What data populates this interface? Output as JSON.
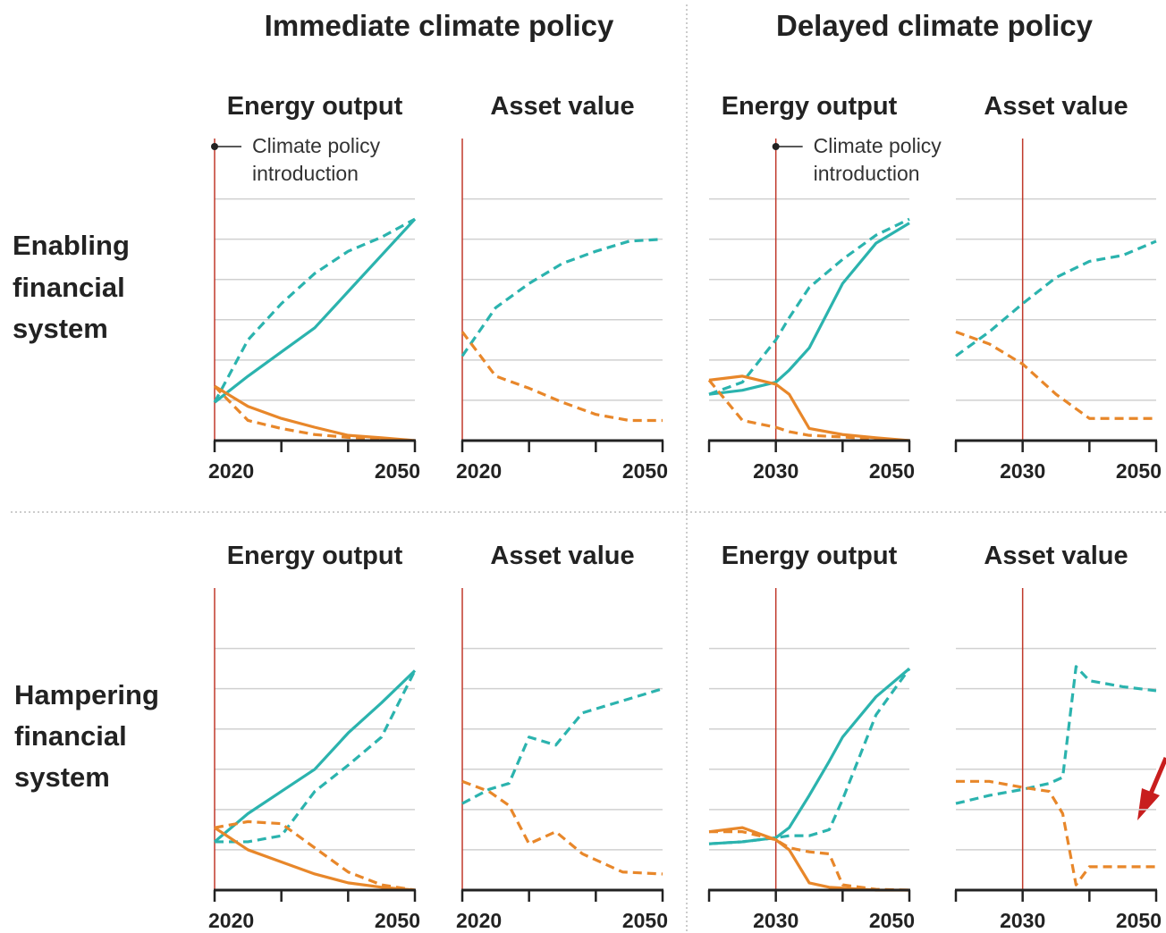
{
  "column_headers": [
    "Immediate climate policy",
    "Delayed climate policy"
  ],
  "row_labels": [
    [
      "Enabling",
      "financial",
      "system"
    ],
    [
      "Hampering",
      "financial",
      "system"
    ]
  ],
  "chart_data": [
    {
      "type": "line",
      "title": "Energy output",
      "annotation": [
        "Climate policy",
        "introduction"
      ],
      "policy_year": 2020,
      "x": [
        2020,
        2025,
        2030,
        2035,
        2040,
        2045,
        2050
      ],
      "xlim": [
        2020,
        2050
      ],
      "xticks": [
        2020,
        2050
      ],
      "xminor": [
        2030,
        2040
      ],
      "ylim": [
        0,
        7.5
      ],
      "yticks": [
        1,
        2,
        3,
        4,
        5,
        6
      ],
      "grid": true,
      "series": [
        {
          "color": "#2bb3ae",
          "dash": false,
          "values": [
            0.95,
            1.6,
            2.2,
            2.8,
            3.7,
            4.6,
            5.5
          ]
        },
        {
          "color": "#2bb3ae",
          "dash": true,
          "values": [
            0.95,
            2.5,
            3.4,
            4.15,
            4.7,
            5.05,
            5.5
          ]
        },
        {
          "color": "#e8872a",
          "dash": false,
          "values": [
            1.35,
            0.85,
            0.55,
            0.33,
            0.13,
            0.07,
            0
          ]
        },
        {
          "color": "#e8872a",
          "dash": true,
          "values": [
            1.35,
            0.5,
            0.3,
            0.15,
            0.08,
            0.04,
            0
          ]
        }
      ]
    },
    {
      "type": "line",
      "title": "Asset value",
      "policy_year": 2020,
      "x": [
        2020,
        2025,
        2030,
        2035,
        2040,
        2045,
        2050
      ],
      "xlim": [
        2020,
        2050
      ],
      "xticks": [
        2020,
        2050
      ],
      "xminor": [
        2030,
        2040
      ],
      "ylim": [
        0,
        7.5
      ],
      "yticks": [
        1,
        2,
        3,
        4,
        5,
        6
      ],
      "grid": true,
      "series": [
        {
          "color": "#2bb3ae",
          "dash": true,
          "values": [
            2.1,
            3.3,
            3.9,
            4.4,
            4.7,
            4.95,
            5.0
          ]
        },
        {
          "color": "#e8872a",
          "dash": true,
          "values": [
            2.7,
            1.6,
            1.3,
            0.95,
            0.65,
            0.5,
            0.5
          ]
        }
      ]
    },
    {
      "type": "line",
      "title": "Energy output",
      "annotation": [
        "Climate policy",
        "introduction"
      ],
      "policy_year": 2030,
      "x": [
        2020,
        2025,
        2030,
        2032,
        2035,
        2040,
        2045,
        2050
      ],
      "xlim": [
        2020,
        2050
      ],
      "xticks": [
        2030,
        2050
      ],
      "xminor": [
        2020,
        2040
      ],
      "ylim": [
        0,
        7.5
      ],
      "yticks": [
        1,
        2,
        3,
        4,
        5,
        6
      ],
      "grid": true,
      "series": [
        {
          "color": "#2bb3ae",
          "dash": false,
          "values": [
            1.15,
            1.25,
            1.45,
            1.75,
            2.3,
            3.9,
            4.9,
            5.4
          ]
        },
        {
          "color": "#2bb3ae",
          "dash": true,
          "values": [
            1.15,
            1.45,
            2.5,
            3.05,
            3.8,
            4.5,
            5.1,
            5.5
          ]
        },
        {
          "color": "#e8872a",
          "dash": false,
          "values": [
            1.5,
            1.6,
            1.4,
            1.15,
            0.3,
            0.15,
            0.07,
            0
          ]
        },
        {
          "color": "#e8872a",
          "dash": true,
          "values": [
            1.5,
            0.5,
            0.33,
            0.22,
            0.13,
            0.09,
            0.04,
            0
          ]
        }
      ]
    },
    {
      "type": "line",
      "title": "Asset value",
      "policy_year": 2030,
      "x": [
        2020,
        2025,
        2030,
        2035,
        2040,
        2045,
        2050
      ],
      "xlim": [
        2020,
        2050
      ],
      "xticks": [
        2030,
        2050
      ],
      "xminor": [
        2020,
        2040
      ],
      "ylim": [
        0,
        7.5
      ],
      "yticks": [
        1,
        2,
        3,
        4,
        5,
        6
      ],
      "grid": true,
      "series": [
        {
          "color": "#2bb3ae",
          "dash": true,
          "values": [
            2.1,
            2.7,
            3.4,
            4.05,
            4.45,
            4.6,
            4.95
          ]
        },
        {
          "color": "#e8872a",
          "dash": true,
          "values": [
            2.7,
            2.4,
            1.9,
            1.15,
            0.55,
            0.55,
            0.55
          ]
        }
      ]
    },
    {
      "type": "line",
      "title": "Energy output",
      "policy_year": 2020,
      "x": [
        2020,
        2025,
        2030,
        2035,
        2040,
        2045,
        2050
      ],
      "xlim": [
        2020,
        2050
      ],
      "xticks": [
        2020,
        2050
      ],
      "xminor": [
        2030,
        2040
      ],
      "ylim": [
        0,
        7.5
      ],
      "yticks": [
        1,
        2,
        3,
        4,
        5,
        6
      ],
      "grid": true,
      "series": [
        {
          "color": "#2bb3ae",
          "dash": false,
          "values": [
            1.2,
            1.9,
            2.45,
            3.0,
            3.9,
            4.65,
            5.45
          ]
        },
        {
          "color": "#2bb3ae",
          "dash": true,
          "values": [
            1.2,
            1.2,
            1.35,
            2.45,
            3.1,
            3.8,
            5.45
          ]
        },
        {
          "color": "#e8872a",
          "dash": false,
          "values": [
            1.55,
            1.0,
            0.7,
            0.4,
            0.18,
            0.07,
            0
          ]
        },
        {
          "color": "#e8872a",
          "dash": true,
          "values": [
            1.55,
            1.7,
            1.65,
            1.05,
            0.45,
            0.13,
            0
          ]
        }
      ]
    },
    {
      "type": "line",
      "title": "Asset value",
      "policy_year": 2020,
      "x": [
        2020,
        2024,
        2027,
        2030,
        2034,
        2038,
        2044,
        2050
      ],
      "xlim": [
        2020,
        2050
      ],
      "xticks": [
        2020,
        2050
      ],
      "xminor": [
        2030,
        2040
      ],
      "ylim": [
        0,
        7.5
      ],
      "yticks": [
        1,
        2,
        3,
        4,
        5,
        6
      ],
      "grid": true,
      "series": [
        {
          "color": "#2bb3ae",
          "dash": true,
          "values": [
            2.15,
            2.5,
            2.65,
            3.8,
            3.6,
            4.4,
            4.7,
            5.0
          ]
        },
        {
          "color": "#e8872a",
          "dash": true,
          "values": [
            2.7,
            2.45,
            2.1,
            1.15,
            1.45,
            0.9,
            0.45,
            0.4
          ]
        }
      ]
    },
    {
      "type": "line",
      "title": "Energy output",
      "policy_year": 2030,
      "x": [
        2020,
        2025,
        2030,
        2032,
        2035,
        2038,
        2040,
        2045,
        2050
      ],
      "xlim": [
        2020,
        2050
      ],
      "xticks": [
        2030,
        2050
      ],
      "xminor": [
        2020,
        2040
      ],
      "ylim": [
        0,
        7.5
      ],
      "yticks": [
        1,
        2,
        3,
        4,
        5,
        6
      ],
      "grid": true,
      "series": [
        {
          "color": "#2bb3ae",
          "dash": false,
          "values": [
            1.15,
            1.2,
            1.3,
            1.55,
            2.35,
            3.2,
            3.8,
            4.8,
            5.5
          ]
        },
        {
          "color": "#2bb3ae",
          "dash": true,
          "values": [
            1.15,
            1.2,
            1.3,
            1.35,
            1.35,
            1.5,
            2.25,
            4.35,
            5.5
          ]
        },
        {
          "color": "#e8872a",
          "dash": false,
          "values": [
            1.45,
            1.55,
            1.25,
            1.0,
            0.18,
            0.07,
            0.05,
            0,
            0
          ]
        },
        {
          "color": "#e8872a",
          "dash": true,
          "values": [
            1.45,
            1.45,
            1.25,
            1.05,
            0.95,
            0.9,
            0.13,
            0.02,
            0
          ]
        }
      ]
    },
    {
      "type": "line",
      "title": "Asset value",
      "policy_year": 2030,
      "x": [
        2020,
        2025,
        2030,
        2034,
        2036,
        2038,
        2040,
        2045,
        2050
      ],
      "xlim": [
        2020,
        2050
      ],
      "xticks": [
        2030,
        2050
      ],
      "xminor": [
        2020,
        2040
      ],
      "ylim": [
        0,
        7.5
      ],
      "yticks": [
        1,
        2,
        3,
        4,
        5,
        6
      ],
      "grid": true,
      "series": [
        {
          "color": "#2bb3ae",
          "dash": true,
          "values": [
            2.15,
            2.35,
            2.5,
            2.65,
            2.8,
            5.55,
            5.2,
            5.05,
            4.95
          ]
        },
        {
          "color": "#e8872a",
          "dash": true,
          "values": [
            2.7,
            2.7,
            2.55,
            2.45,
            1.9,
            0.13,
            0.58,
            0.58,
            0.58
          ]
        }
      ]
    }
  ]
}
